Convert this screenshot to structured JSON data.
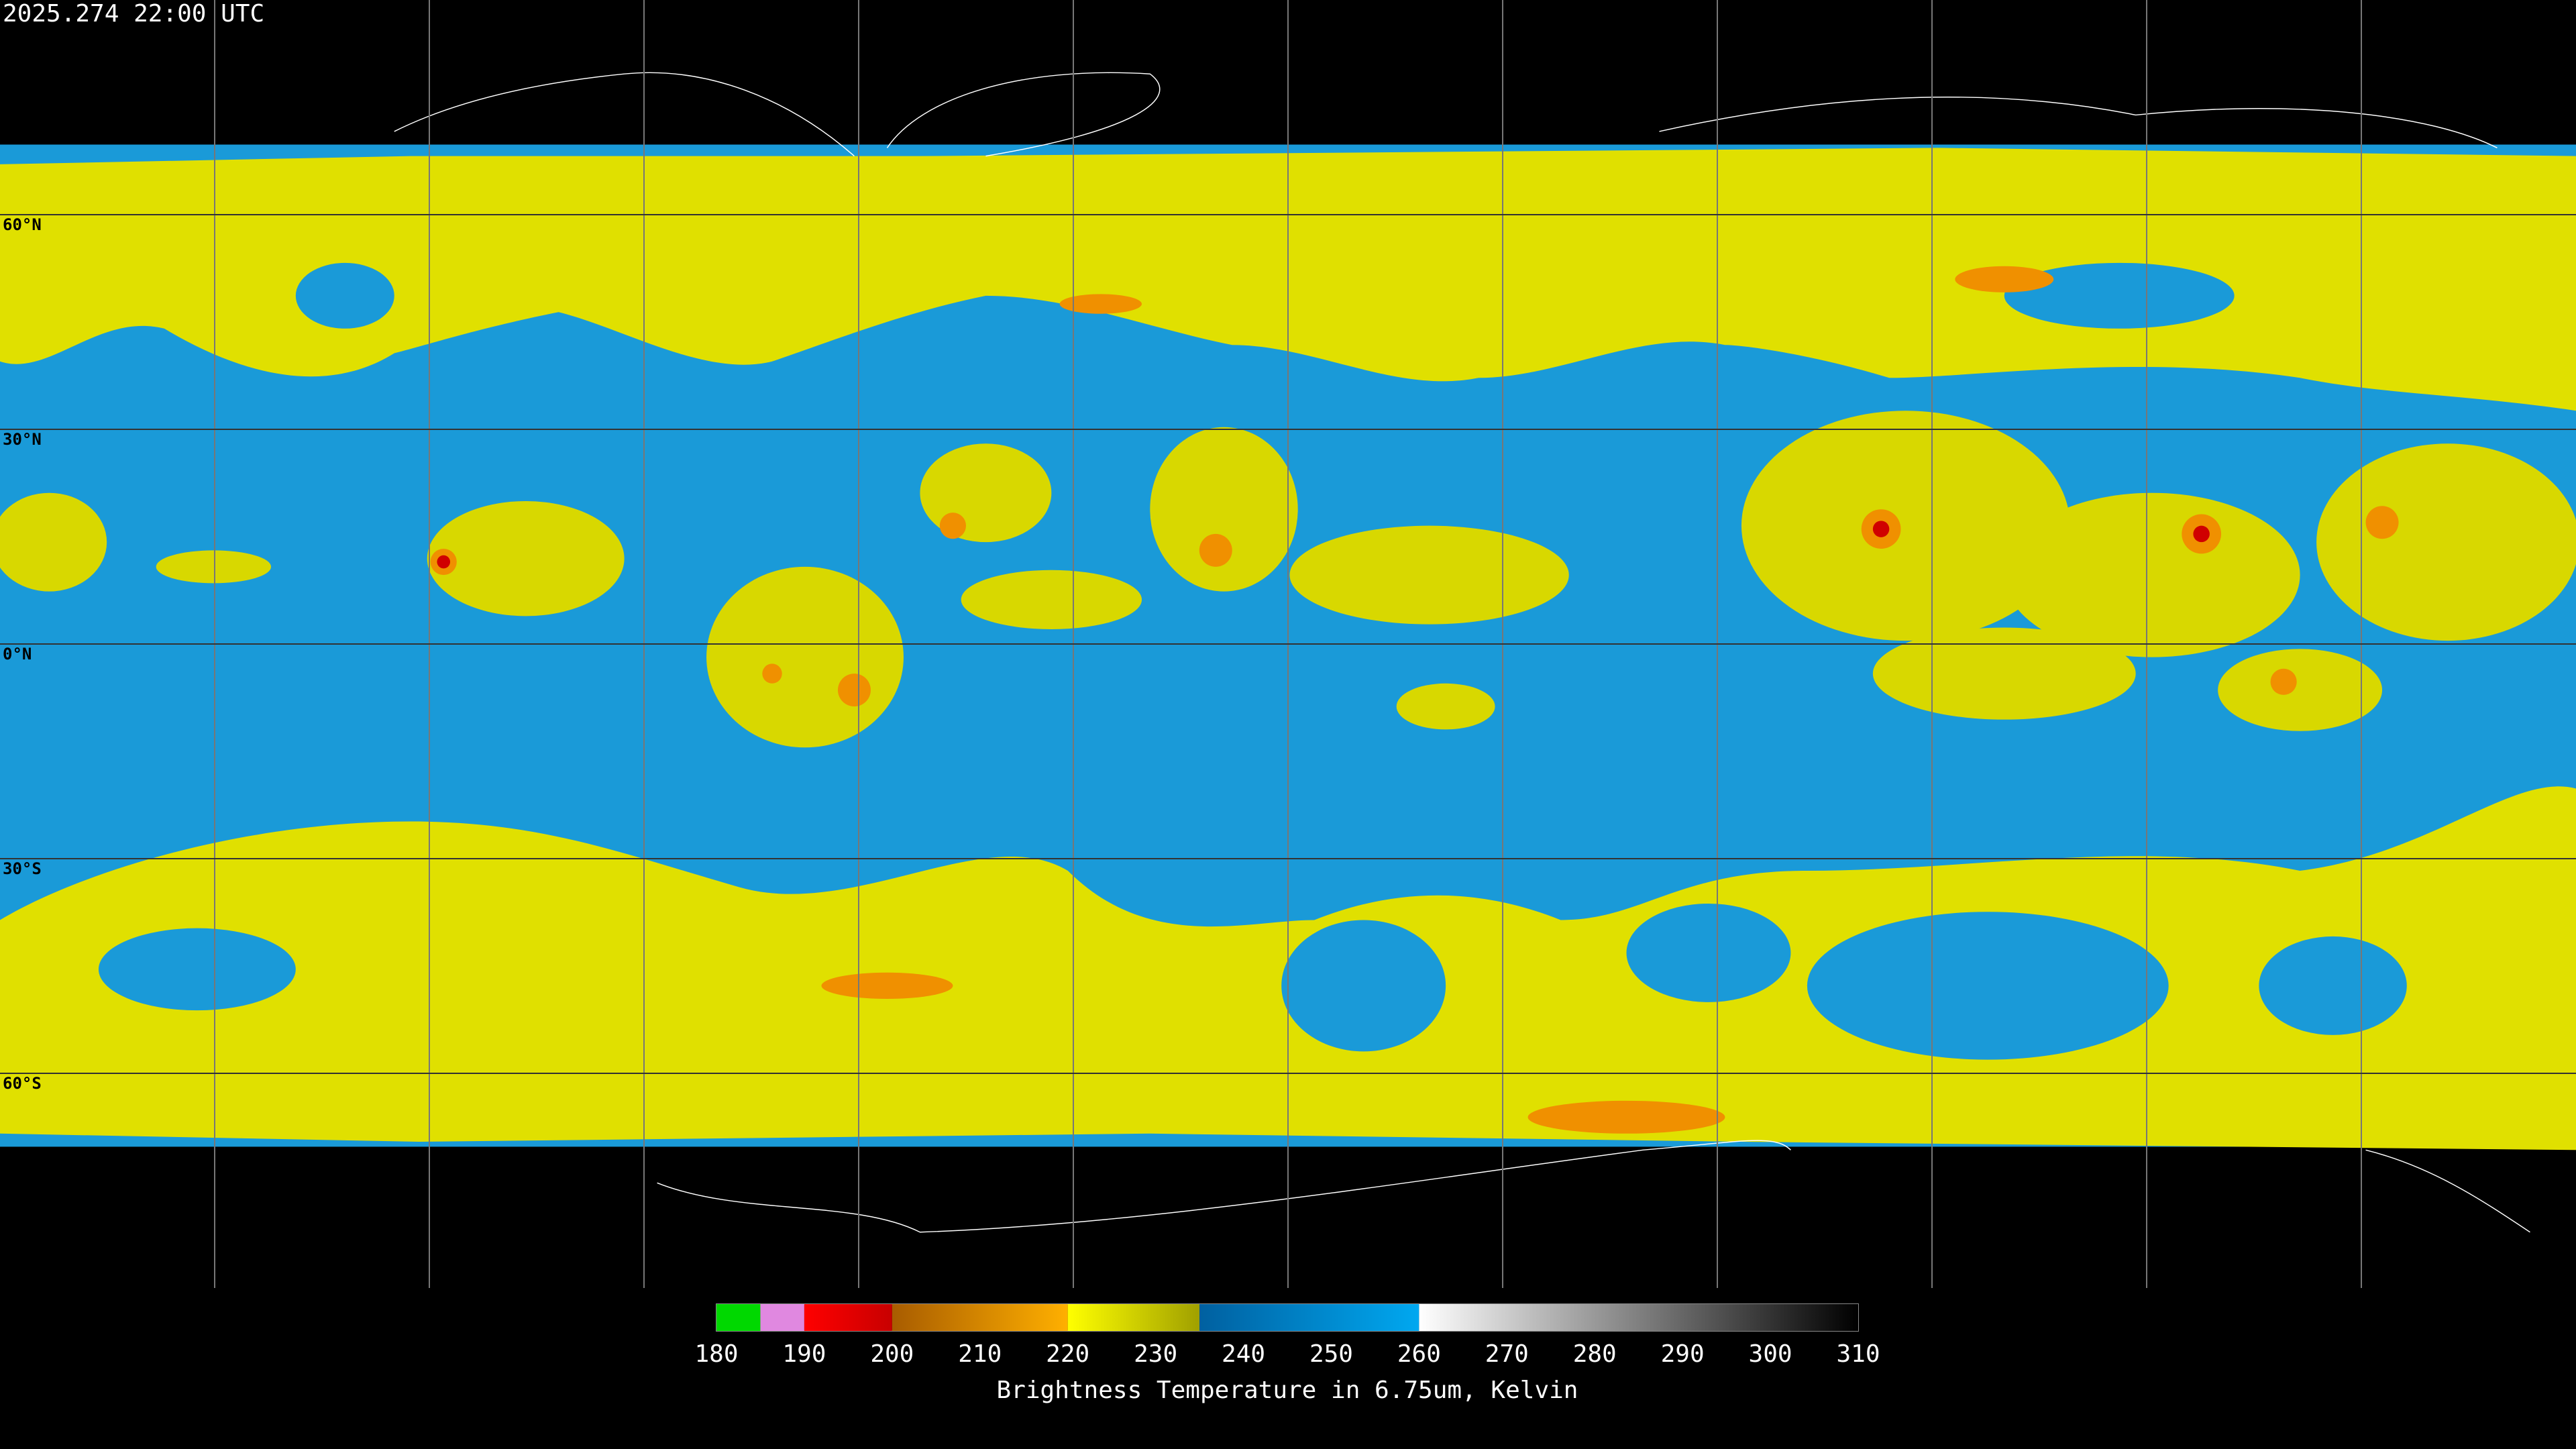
{
  "header": {
    "timestamp": "2025.274 22:00 UTC"
  },
  "map": {
    "latitudes": [
      {
        "value": 60,
        "label": "60°N"
      },
      {
        "value": 30,
        "label": "30°N"
      },
      {
        "value": 0,
        "label": "0°N"
      },
      {
        "value": -30,
        "label": "30°S"
      },
      {
        "value": -60,
        "label": "60°S"
      }
    ]
  },
  "colorbar": {
    "title": "Brightness Temperature in 6.75um, Kelvin",
    "range": [
      180,
      310
    ],
    "ticks": [
      180,
      190,
      200,
      210,
      220,
      230,
      240,
      250,
      260,
      270,
      280,
      290,
      300,
      310
    ],
    "segments": [
      {
        "from": 180,
        "to": 185,
        "colors": [
          "#00d800",
          "#00d800"
        ]
      },
      {
        "from": 185,
        "to": 190,
        "colors": [
          "#e088e0",
          "#e088e0"
        ]
      },
      {
        "from": 190,
        "to": 200,
        "colors": [
          "#ff0000",
          "#c80000"
        ]
      },
      {
        "from": 200,
        "to": 220,
        "colors": [
          "#a85c00",
          "#ffb000"
        ]
      },
      {
        "from": 220,
        "to": 235,
        "colors": [
          "#ffff00",
          "#a0a000"
        ]
      },
      {
        "from": 235,
        "to": 260,
        "colors": [
          "#0060a0",
          "#00a8f0"
        ]
      },
      {
        "from": 260,
        "to": 310,
        "colors": [
          "#ffffff",
          "#000000"
        ]
      }
    ]
  }
}
